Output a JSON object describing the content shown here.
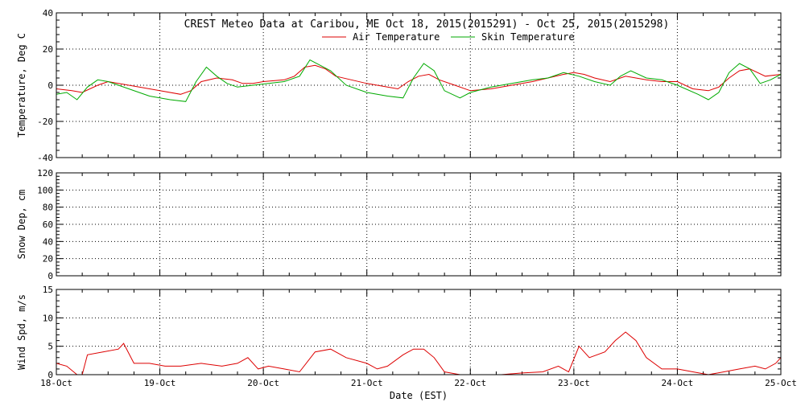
{
  "chart_data": [
    {
      "type": "line",
      "title": "CREST Meteo Data at Caribou, ME   Oct 18, 2015(2015291) - Oct 25, 2015(2015298)",
      "ylabel": "Temperature, Deg C",
      "xlabel": "",
      "xlim": [
        0,
        7
      ],
      "ylim": [
        -40,
        40
      ],
      "yticks": [
        -40,
        -20,
        0,
        20,
        40
      ],
      "grid": true,
      "legend": "top-center",
      "series": [
        {
          "name": "Air Temperature",
          "color": "#dd0000",
          "x": [
            0,
            0.15,
            0.25,
            0.4,
            0.5,
            0.6,
            0.8,
            1.0,
            1.2,
            1.3,
            1.4,
            1.55,
            1.7,
            1.8,
            1.9,
            2.0,
            2.1,
            2.2,
            2.3,
            2.4,
            2.5,
            2.6,
            2.7,
            2.85,
            3.0,
            3.1,
            3.2,
            3.3,
            3.4,
            3.5,
            3.6,
            3.7,
            3.85,
            4.0,
            4.2,
            4.4,
            4.6,
            4.75,
            4.9,
            5.0,
            5.1,
            5.2,
            5.35,
            5.5,
            5.7,
            5.85,
            6.0,
            6.15,
            6.3,
            6.4,
            6.5,
            6.6,
            6.7,
            6.85,
            7.0
          ],
          "values": [
            -2,
            -3,
            -4,
            0,
            2,
            1,
            -1,
            -3,
            -5,
            -3,
            2,
            4,
            3,
            1,
            1,
            2,
            2.5,
            3,
            5,
            10,
            11,
            9,
            5,
            3,
            1,
            0,
            -1,
            -2,
            2,
            5,
            6,
            3,
            0,
            -3,
            -2,
            0,
            2,
            4,
            6,
            7,
            6,
            4,
            2,
            5,
            3,
            2,
            2,
            -2,
            -3,
            -1,
            4,
            8,
            9,
            5,
            6
          ]
        },
        {
          "name": "Skin Temperature",
          "color": "#00aa00",
          "x": [
            0,
            0.1,
            0.2,
            0.3,
            0.4,
            0.5,
            0.7,
            0.9,
            1.1,
            1.25,
            1.35,
            1.45,
            1.55,
            1.65,
            1.75,
            1.9,
            2.05,
            2.2,
            2.35,
            2.45,
            2.55,
            2.65,
            2.8,
            3.0,
            3.2,
            3.35,
            3.45,
            3.55,
            3.65,
            3.75,
            3.9,
            4.0,
            4.2,
            4.4,
            4.6,
            4.75,
            4.9,
            5.05,
            5.2,
            5.35,
            5.45,
            5.55,
            5.7,
            5.85,
            6.0,
            6.2,
            6.3,
            6.4,
            6.5,
            6.6,
            6.7,
            6.8,
            6.9,
            7.0
          ],
          "values": [
            -5,
            -4,
            -8,
            -1,
            3,
            2,
            -2,
            -6,
            -8,
            -9,
            2,
            10,
            5,
            1,
            -1,
            0,
            1,
            2,
            5,
            14,
            11,
            8,
            0,
            -4,
            -6,
            -7,
            4,
            12,
            8,
            -3,
            -7,
            -4,
            -1,
            1,
            3,
            4,
            7,
            5,
            2,
            0,
            5,
            8,
            4,
            3,
            0,
            -5,
            -8,
            -4,
            7,
            12,
            9,
            1,
            3,
            6
          ]
        }
      ]
    },
    {
      "type": "line",
      "ylabel": "Snow Dep, cm",
      "xlim": [
        0,
        7
      ],
      "ylim": [
        0,
        120
      ],
      "yticks": [
        0,
        20,
        40,
        60,
        80,
        100,
        120
      ],
      "grid": true,
      "series": []
    },
    {
      "type": "line",
      "ylabel": "Wind Spd, m/s",
      "xlabel": "Date (EST)",
      "xlim": [
        0,
        7
      ],
      "ylim": [
        0,
        15
      ],
      "yticks": [
        0,
        5,
        10,
        15
      ],
      "categories": [
        "18-Oct",
        "19-Oct",
        "20-Oct",
        "21-Oct",
        "22-Oct",
        "23-Oct",
        "24-Oct",
        "25-Oct"
      ],
      "grid": true,
      "series": [
        {
          "name": "",
          "color": "#dd0000",
          "x": [
            0,
            0.1,
            0.2,
            0.25,
            0.3,
            0.45,
            0.6,
            0.65,
            0.75,
            0.9,
            1.05,
            1.2,
            1.4,
            1.6,
            1.75,
            1.85,
            1.95,
            2.05,
            2.2,
            2.35,
            2.5,
            2.65,
            2.8,
            3.0,
            3.1,
            3.2,
            3.35,
            3.45,
            3.55,
            3.65,
            3.75,
            3.9,
            4.1,
            4.3,
            4.5,
            4.7,
            4.85,
            4.95,
            5.05,
            5.15,
            5.3,
            5.4,
            5.5,
            5.6,
            5.7,
            5.85,
            6.0,
            6.15,
            6.3,
            6.45,
            6.6,
            6.75,
            6.85,
            6.95,
            7.0
          ],
          "values": [
            2,
            1.5,
            0,
            0,
            3.5,
            4,
            4.5,
            5.5,
            2,
            2,
            1.5,
            1.5,
            2,
            1.5,
            2,
            3,
            1,
            1.5,
            1,
            0.5,
            4,
            4.5,
            3,
            2,
            1,
            1.5,
            3.5,
            4.5,
            4.5,
            3,
            0.5,
            0,
            0,
            0,
            0.3,
            0.5,
            1.5,
            0.5,
            5,
            3,
            4,
            6,
            7.5,
            6,
            3,
            1,
            1,
            0.5,
            0,
            0.5,
            1,
            1.5,
            1,
            2,
            3
          ]
        }
      ]
    }
  ]
}
